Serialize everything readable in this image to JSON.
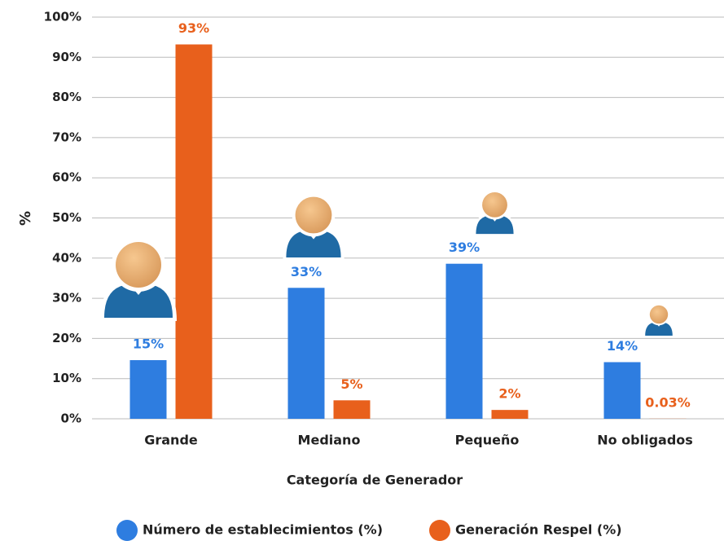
{
  "chart_data": {
    "type": "bar",
    "x_label": "Categoría de Generador",
    "y_label": "%",
    "categories": [
      "Grande",
      "Mediano",
      "Pequeño",
      "No obligados"
    ],
    "series": [
      {
        "name": "Número de establecimientos (%)",
        "color": "#2e7de0",
        "values": [
          14.6,
          32.6,
          38.6,
          14.1
        ],
        "value_labels": [
          "15%",
          "33%",
          "39%",
          "14%"
        ]
      },
      {
        "name": "Generación Respel (%)",
        "color": "#e8601c",
        "values": [
          93.2,
          4.6,
          2.2,
          0.03
        ],
        "value_labels": [
          "93%",
          "5%",
          "2%",
          "0.03%"
        ]
      }
    ],
    "ylim": [
      0,
      100
    ],
    "yticks": [
      {
        "value": 0,
        "label": "0%"
      },
      {
        "value": 10,
        "label": "10%"
      },
      {
        "value": 20,
        "label": "20%"
      },
      {
        "value": 30,
        "label": "30%"
      },
      {
        "value": 40,
        "label": "40%"
      },
      {
        "value": 50,
        "label": "50%"
      },
      {
        "value": 60,
        "label": "60%"
      },
      {
        "value": 70,
        "label": "70%"
      },
      {
        "value": 80,
        "label": "80%"
      },
      {
        "value": 90,
        "label": "90%"
      },
      {
        "value": 100,
        "label": "100%"
      }
    ],
    "grid": true,
    "legend": "bottom"
  }
}
